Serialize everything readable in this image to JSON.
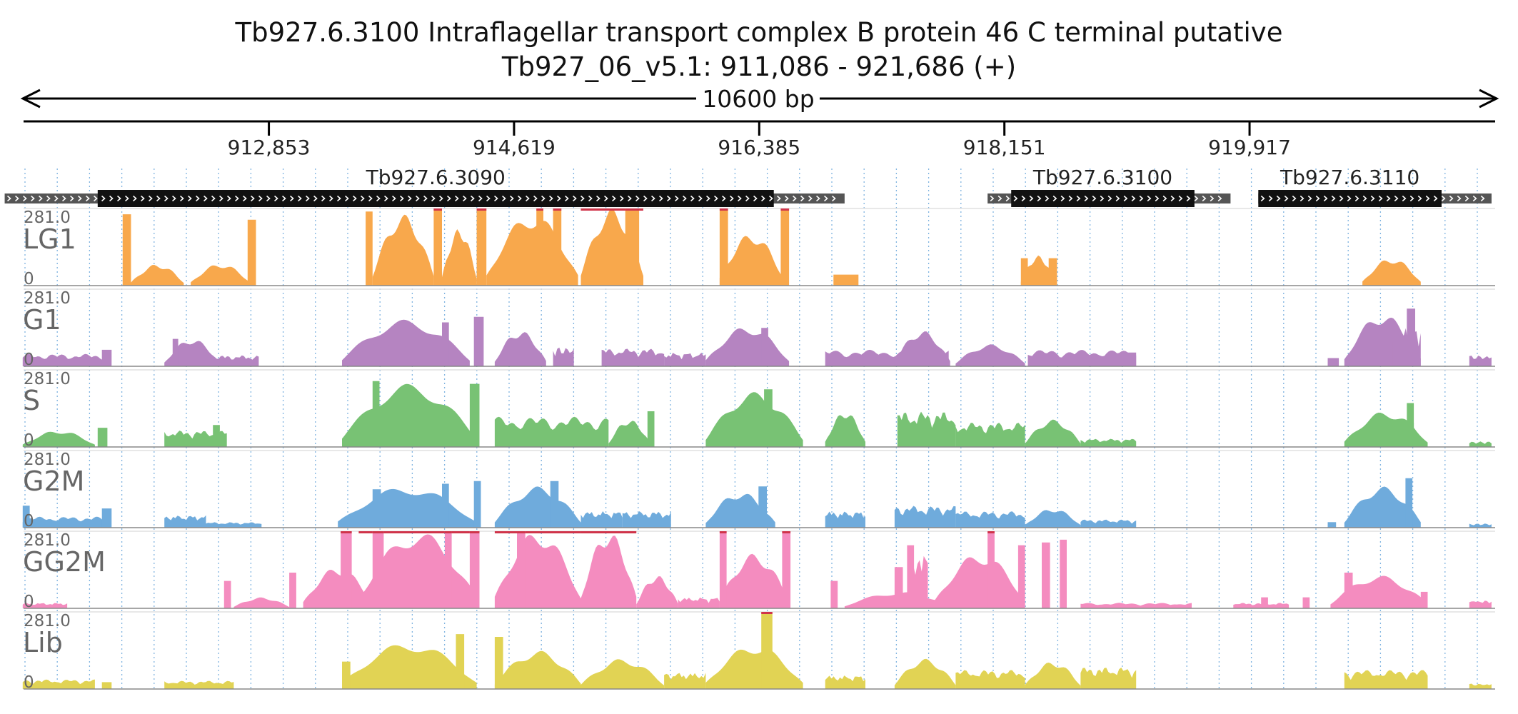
{
  "chart_data": {
    "type": "area",
    "title": "Tb927.6.3100  Intraflagellar transport complex B protein 46 C terminal  putative",
    "subtitle": "Tb927_06_v5.1: 911,086 - 921,686 (+)",
    "span_label": "10600 bp",
    "region": {
      "start": 911086,
      "end": 921686
    },
    "xticks": [
      {
        "value": 912853,
        "label": "912,853"
      },
      {
        "value": 914619,
        "label": "914,619"
      },
      {
        "value": 916385,
        "label": "916,385"
      },
      {
        "value": 918151,
        "label": "918,151"
      },
      {
        "value": 919917,
        "label": "919,917"
      }
    ],
    "genes": [
      {
        "name": "Tb927.6.3090",
        "start": 911620,
        "end": 916490,
        "utr_start": 910950,
        "utr_end": 917000,
        "strand": "+"
      },
      {
        "name": "Tb927.6.3100",
        "start": 918200,
        "end": 919520,
        "utr_start": 918030,
        "utr_end": 919780,
        "strand": "+"
      },
      {
        "name": "Tb927.6.3110",
        "start": 919980,
        "end": 921300,
        "utr_start": 919980,
        "utr_end": 921660,
        "strand": "+"
      }
    ],
    "tracks": [
      {
        "name": "LG1",
        "color": "#f8a84c",
        "ymin": "0",
        "ymax": "281.0",
        "peaks": [
          [
            911800,
            911860,
            260,
            "box"
          ],
          [
            911860,
            912240,
            78,
            "hump"
          ],
          [
            912290,
            912720,
            80,
            "hump"
          ],
          [
            912700,
            912760,
            240,
            "box"
          ],
          [
            913550,
            913600,
            270,
            "box"
          ],
          [
            913600,
            914040,
            260,
            "hump"
          ],
          [
            914040,
            914100,
            281,
            "box"
          ],
          [
            914100,
            914350,
            210,
            "hump"
          ],
          [
            914350,
            914420,
            281,
            "box"
          ],
          [
            914420,
            915080,
            260,
            "hump"
          ],
          [
            914780,
            914830,
            281,
            "box"
          ],
          [
            914900,
            914960,
            281,
            "box"
          ],
          [
            915100,
            915550,
            281,
            "hump"
          ],
          [
            915420,
            915520,
            281,
            "box"
          ],
          [
            916100,
            916560,
            190,
            "hump"
          ],
          [
            916100,
            916160,
            281,
            "box"
          ],
          [
            916540,
            916600,
            281,
            "box"
          ],
          [
            916920,
            917100,
            40,
            "box"
          ],
          [
            918270,
            918520,
            110,
            "hump"
          ],
          [
            918270,
            918320,
            100,
            "box"
          ],
          [
            918470,
            918530,
            100,
            "box"
          ],
          [
            920730,
            921150,
            100,
            "hump"
          ]
        ]
      },
      {
        "name": "G1",
        "color": "#b584c1",
        "ymin": "0",
        "ymax": "281.0",
        "peaks": [
          [
            911080,
            911700,
            45,
            "noise"
          ],
          [
            911650,
            911720,
            60,
            "box"
          ],
          [
            912100,
            912500,
            100,
            "hump"
          ],
          [
            912160,
            912200,
            100,
            "box"
          ],
          [
            912400,
            912780,
            40,
            "noise"
          ],
          [
            913380,
            914300,
            170,
            "hump"
          ],
          [
            913550,
            914150,
            100,
            "noise"
          ],
          [
            914100,
            914150,
            160,
            "box"
          ],
          [
            914330,
            914400,
            180,
            "box"
          ],
          [
            914480,
            914850,
            130,
            "hump"
          ],
          [
            914900,
            915050,
            70,
            "noise"
          ],
          [
            915250,
            915700,
            65,
            "noise"
          ],
          [
            915700,
            916000,
            50,
            "noise"
          ],
          [
            916000,
            916600,
            145,
            "hump"
          ],
          [
            916400,
            916450,
            140,
            "box"
          ],
          [
            916860,
            917750,
            60,
            "noise"
          ],
          [
            917360,
            917760,
            130,
            "hump"
          ],
          [
            917800,
            918300,
            80,
            "hump"
          ],
          [
            918320,
            919100,
            60,
            "noise"
          ],
          [
            919020,
            919100,
            50,
            "box"
          ],
          [
            920480,
            920560,
            30,
            "box"
          ],
          [
            920600,
            921150,
            190,
            "hump"
          ],
          [
            920950,
            921150,
            140,
            "noise"
          ],
          [
            921050,
            921110,
            210,
            "box"
          ],
          [
            921500,
            921660,
            40,
            "noise"
          ]
        ]
      },
      {
        "name": "S",
        "color": "#78c274",
        "ymin": "0",
        "ymax": "281.0",
        "peaks": [
          [
            911080,
            911600,
            60,
            "hump"
          ],
          [
            911620,
            911690,
            70,
            "box"
          ],
          [
            912100,
            912550,
            60,
            "noise"
          ],
          [
            912450,
            912500,
            80,
            "box"
          ],
          [
            913380,
            914350,
            230,
            "hump"
          ],
          [
            913600,
            913650,
            240,
            "box"
          ],
          [
            914300,
            914370,
            230,
            "box"
          ],
          [
            914480,
            915300,
            110,
            "noise"
          ],
          [
            915300,
            915600,
            100,
            "hump"
          ],
          [
            915580,
            915630,
            130,
            "box"
          ],
          [
            916000,
            916700,
            200,
            "hump"
          ],
          [
            916300,
            916360,
            170,
            "box"
          ],
          [
            916420,
            916480,
            210,
            "box"
          ],
          [
            916860,
            917150,
            130,
            "hump"
          ],
          [
            917380,
            917800,
            130,
            "noise"
          ],
          [
            917800,
            918300,
            90,
            "noise"
          ],
          [
            918300,
            918700,
            100,
            "hump"
          ],
          [
            918700,
            919100,
            30,
            "noise"
          ],
          [
            920600,
            921200,
            130,
            "hump"
          ],
          [
            920900,
            921100,
            110,
            "noise"
          ],
          [
            921050,
            921100,
            160,
            "box"
          ],
          [
            921500,
            921660,
            20,
            "noise"
          ]
        ]
      },
      {
        "name": "G2M",
        "color": "#6fabdc",
        "ymin": "0",
        "ymax": "281.0",
        "peaks": [
          [
            911080,
            911700,
            40,
            "noise"
          ],
          [
            911080,
            911130,
            80,
            "box"
          ],
          [
            911650,
            911720,
            70,
            "box"
          ],
          [
            912100,
            912400,
            45,
            "noise"
          ],
          [
            912400,
            912800,
            20,
            "noise"
          ],
          [
            913350,
            914350,
            150,
            "hump"
          ],
          [
            913600,
            913660,
            140,
            "box"
          ],
          [
            914100,
            914150,
            160,
            "box"
          ],
          [
            914330,
            914380,
            170,
            "box"
          ],
          [
            914480,
            915100,
            150,
            "hump"
          ],
          [
            914880,
            914940,
            170,
            "box"
          ],
          [
            915100,
            915400,
            60,
            "noise"
          ],
          [
            915400,
            915750,
            60,
            "noise"
          ],
          [
            916000,
            916500,
            130,
            "hump"
          ],
          [
            916380,
            916440,
            150,
            "box"
          ],
          [
            916860,
            917150,
            60,
            "noise"
          ],
          [
            917360,
            917800,
            80,
            "noise"
          ],
          [
            917800,
            918300,
            60,
            "noise"
          ],
          [
            918300,
            918700,
            70,
            "hump"
          ],
          [
            918700,
            919100,
            30,
            "noise"
          ],
          [
            920480,
            920540,
            20,
            "box"
          ],
          [
            920600,
            921150,
            150,
            "hump"
          ],
          [
            921040,
            921090,
            180,
            "box"
          ],
          [
            921500,
            921660,
            15,
            "noise"
          ]
        ]
      },
      {
        "name": "GG2M",
        "color": "#f48cbf",
        "ymin": "0",
        "ymax": "281.0",
        "peaks": [
          [
            911080,
            911400,
            20,
            "noise"
          ],
          [
            912530,
            912580,
            100,
            "box"
          ],
          [
            912600,
            913000,
            40,
            "hump"
          ],
          [
            913000,
            913050,
            130,
            "box"
          ],
          [
            913100,
            913600,
            150,
            "hump"
          ],
          [
            913370,
            913450,
            281,
            "box"
          ],
          [
            913500,
            914350,
            281,
            "hump"
          ],
          [
            913600,
            913680,
            281,
            "box"
          ],
          [
            914120,
            914170,
            281,
            "box"
          ],
          [
            914300,
            914370,
            281,
            "box"
          ],
          [
            914480,
            915100,
            281,
            "hump"
          ],
          [
            914640,
            914700,
            281,
            "box"
          ],
          [
            915100,
            915500,
            281,
            "hump"
          ],
          [
            915500,
            915800,
            120,
            "hump"
          ],
          [
            915800,
            916100,
            40,
            "noise"
          ],
          [
            916100,
            916600,
            200,
            "hump"
          ],
          [
            916100,
            916150,
            281,
            "box"
          ],
          [
            916550,
            916610,
            281,
            "box"
          ],
          [
            916900,
            916950,
            100,
            "box"
          ],
          [
            917000,
            917800,
            60,
            "hump"
          ],
          [
            917360,
            917420,
            150,
            "box"
          ],
          [
            917450,
            917500,
            230,
            "box"
          ],
          [
            917480,
            917600,
            200,
            "noise"
          ],
          [
            917650,
            918300,
            200,
            "hump"
          ],
          [
            918030,
            918080,
            281,
            "box"
          ],
          [
            918250,
            918300,
            230,
            "box"
          ],
          [
            918420,
            918480,
            240,
            "box"
          ],
          [
            918550,
            918600,
            250,
            "box"
          ],
          [
            918700,
            919500,
            20,
            "noise"
          ],
          [
            919800,
            920200,
            20,
            "noise"
          ],
          [
            920000,
            920050,
            40,
            "box"
          ],
          [
            920300,
            920350,
            40,
            "box"
          ],
          [
            920500,
            921200,
            120,
            "hump"
          ],
          [
            920600,
            920660,
            130,
            "box"
          ],
          [
            921150,
            921200,
            60,
            "box"
          ],
          [
            921500,
            921660,
            30,
            "noise"
          ]
        ]
      },
      {
        "name": "Lib",
        "color": "#e1d354",
        "ymin": "0",
        "ymax": "281.0",
        "peaks": [
          [
            911080,
            911600,
            35,
            "noise"
          ],
          [
            911650,
            911720,
            25,
            "box"
          ],
          [
            912100,
            912600,
            30,
            "noise"
          ],
          [
            913380,
            914350,
            170,
            "hump"
          ],
          [
            913380,
            913440,
            100,
            "box"
          ],
          [
            914200,
            914260,
            200,
            "box"
          ],
          [
            914480,
            915100,
            140,
            "hump"
          ],
          [
            914480,
            914540,
            190,
            "box"
          ],
          [
            915100,
            915700,
            110,
            "hump"
          ],
          [
            915700,
            916000,
            60,
            "noise"
          ],
          [
            916000,
            916700,
            160,
            "hump"
          ],
          [
            916400,
            916480,
            281,
            "box"
          ],
          [
            916860,
            917150,
            50,
            "noise"
          ],
          [
            917360,
            917800,
            110,
            "hump"
          ],
          [
            917800,
            918300,
            70,
            "noise"
          ],
          [
            918300,
            918700,
            100,
            "hump"
          ],
          [
            918700,
            919100,
            80,
            "noise"
          ],
          [
            920600,
            921200,
            70,
            "noise"
          ],
          [
            921500,
            921660,
            20,
            "noise"
          ]
        ]
      }
    ]
  }
}
